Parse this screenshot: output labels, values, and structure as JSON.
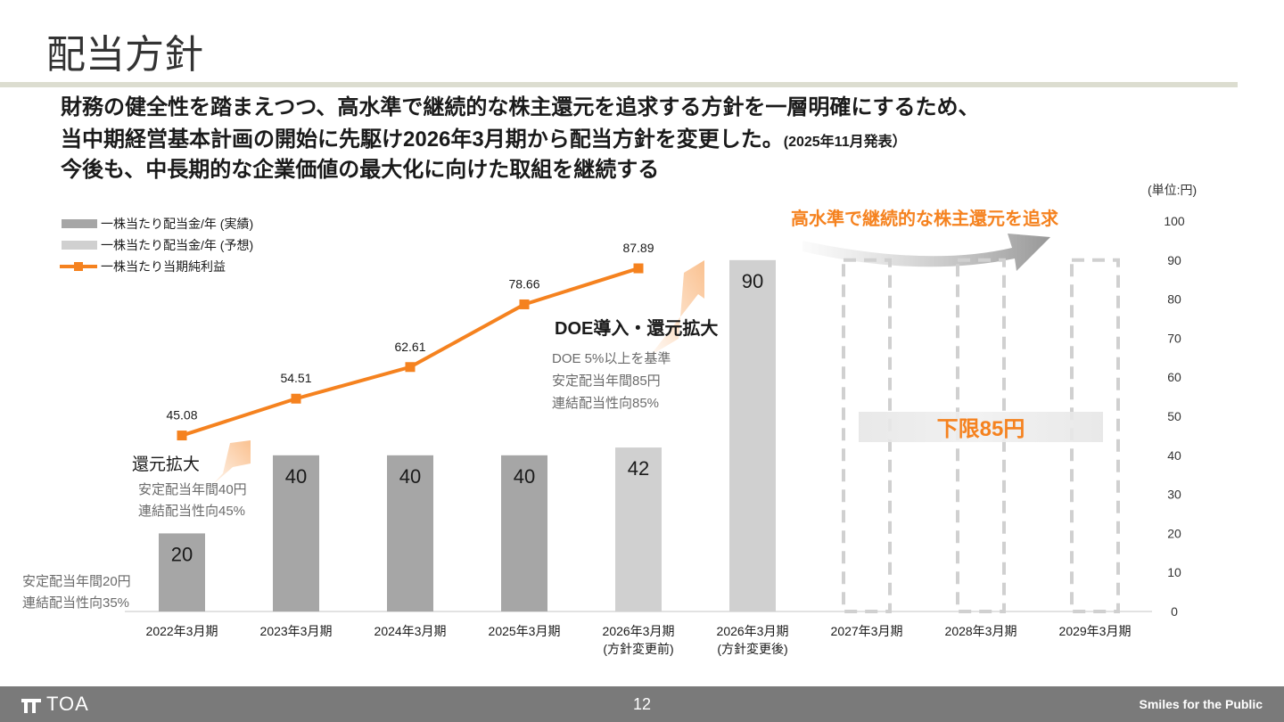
{
  "page": {
    "title": "配当方針",
    "lead_line1": "財務の健全性を踏まえつつ、高水準で継続的な株主還元を追求する方針を一層明確にするため、",
    "lead_line2": "当中期経営基本計画の開始に先駆け2026年3月期から配当方針を変更した。",
    "lead_line2_note": "(2025年11月発表）",
    "lead_line3": "今後も、中長期的な企業価値の最大化に向けた取組を継続する",
    "unit": "(単位:円)",
    "page_number": "12",
    "brand": "TOA",
    "tagline": "Smiles for the Public"
  },
  "chart_data": {
    "type": "bar",
    "categories": [
      "2022年3月期",
      "2023年3月期",
      "2024年3月期",
      "2025年3月期",
      "2026年3月期\n(方針変更前)",
      "2026年3月期\n(方針変更後)",
      "2027年3月期",
      "2028年3月期",
      "2029年3月期"
    ],
    "ylim": [
      0,
      100
    ],
    "yticks": [
      0,
      10,
      20,
      30,
      40,
      50,
      60,
      70,
      80,
      90,
      100
    ],
    "legend": [
      "一株当たり配当金/年 (実績)",
      "一株当たり配当金/年 (予想)",
      "一株当たり当期純利益"
    ],
    "series": [
      {
        "name": "一株当たり配当金/年 (実績)",
        "kind": "bar",
        "color": "#a6a6a6",
        "values": [
          20,
          40,
          40,
          40,
          null,
          null,
          null,
          null,
          null
        ]
      },
      {
        "name": "一株当たり配当金/年 (予想)",
        "kind": "bar",
        "color": "#d0d0d0",
        "values": [
          null,
          null,
          null,
          null,
          42,
          90,
          null,
          null,
          null
        ]
      },
      {
        "name": "一株当たり当期純利益",
        "kind": "line",
        "color": "#f5821f",
        "values": [
          45.08,
          54.51,
          62.61,
          78.66,
          87.89,
          null,
          null,
          null,
          null
        ]
      }
    ],
    "bar_labels": [
      "20",
      "40",
      "40",
      "40",
      "42",
      "90"
    ],
    "line_labels": [
      "45.08",
      "54.51",
      "62.61",
      "78.66",
      "87.89"
    ],
    "outline_bars": {
      "categories": [
        6,
        7,
        8
      ],
      "style": "dashed",
      "color": "#d0d0d0"
    },
    "floor_label": "下限85円",
    "arrow_label": "高水準で継続的な株主還元を追求",
    "annotations": {
      "policy_2022": [
        "安定配当年間20円",
        "連結配当性向35%"
      ],
      "policy_2023_title": "還元拡大",
      "policy_2023": [
        "安定配当年間40円",
        "連結配当性向45%"
      ],
      "policy_2026_title": "DOE導入・還元拡大",
      "policy_2026": [
        "DOE 5%以上を基準",
        "安定配当年間85円",
        "連結配当性向85%"
      ]
    },
    "colors": {
      "accent": "#f5821f",
      "actual": "#a6a6a6",
      "forecast": "#d0d0d0"
    }
  }
}
